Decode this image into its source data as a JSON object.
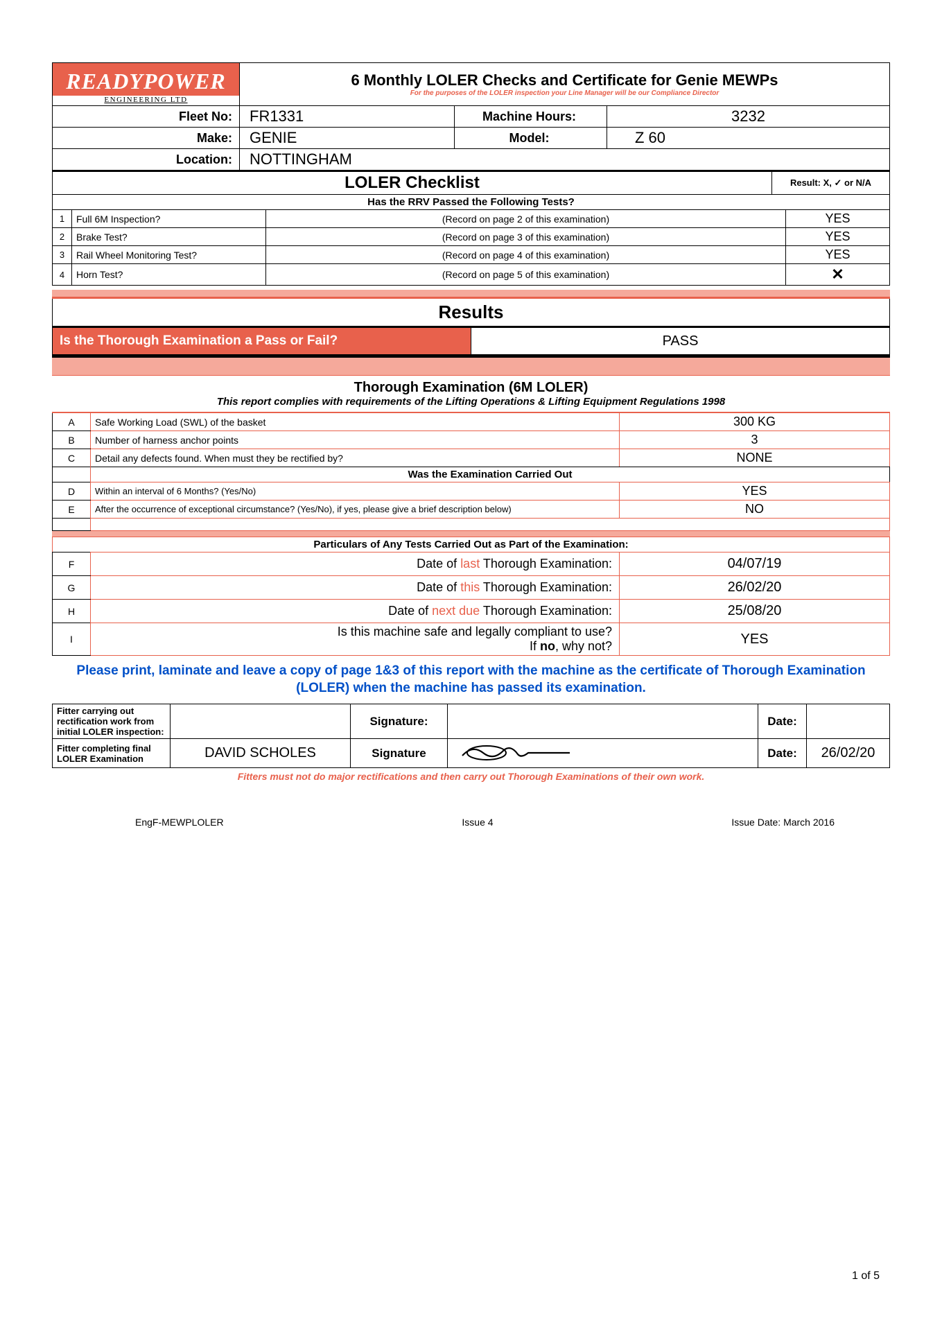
{
  "logo": {
    "main": "READYPOWER",
    "sub": "ENGINEERING LTD"
  },
  "header": {
    "title": "6 Monthly LOLER Checks and Certificate for Genie MEWPs",
    "subtitle": "For the purposes of the LOLER inspection your Line Manager will be our Compliance Director"
  },
  "info": {
    "fleet_label": "Fleet No:",
    "fleet": "FR1331",
    "hours_label": "Machine Hours:",
    "hours": "3232",
    "make_label": "Make:",
    "make": "GENIE",
    "model_label": "Model:",
    "model": "Z 60",
    "location_label": "Location:",
    "location": "NOTTINGHAM"
  },
  "checklist": {
    "title": "LOLER Checklist",
    "legend": "Result: X, ✓ or N/A",
    "subtitle": "Has the RRV Passed the Following Tests?",
    "rows": [
      {
        "n": "1",
        "q": "Full 6M Inspection?",
        "rec": "(Record on page 2 of this examination)",
        "r": "YES"
      },
      {
        "n": "2",
        "q": "Brake Test?",
        "rec": "(Record on page 3 of this examination)",
        "r": "YES"
      },
      {
        "n": "3",
        "q": "Rail Wheel Monitoring Test?",
        "rec": "(Record on page 4 of this examination)",
        "r": "YES"
      },
      {
        "n": "4",
        "q": "Horn Test?",
        "rec": "(Record on page 5 of this examination)",
        "r": "✕"
      }
    ]
  },
  "results": {
    "title": "Results",
    "question": "Is the Thorough Examination a Pass or Fail?",
    "value": "PASS"
  },
  "thorough": {
    "title": "Thorough Examination (6M LOLER)",
    "subtitle": "This report complies with requirements of the Lifting Operations & Lifting Equipment Regulations 1998",
    "rows1": [
      {
        "l": "A",
        "q": "Safe Working Load (SWL) of the basket",
        "v": "300 KG"
      },
      {
        "l": "B",
        "q": "Number of harness anchor points",
        "v": "3"
      },
      {
        "l": "C",
        "q": "Detail any defects found. When must they be rectified by?",
        "v": "NONE"
      }
    ],
    "sec1": "Was the Examination Carried Out",
    "rows2": [
      {
        "l": "D",
        "q": "Within an interval of 6 Months? (Yes/No)",
        "v": "YES"
      },
      {
        "l": "E",
        "q": "After the occurrence of exceptional circumstance? (Yes/No), if yes, please give a brief description below)",
        "v": "NO"
      }
    ],
    "sec2": "Particulars of Any Tests Carried Out as Part of the Examination:",
    "rows3": [
      {
        "l": "F",
        "pre": "Date of ",
        "hl": "last",
        "post": " Thorough Examination:",
        "v": "04/07/19"
      },
      {
        "l": "G",
        "pre": "Date of ",
        "hl": "this",
        "post": " Thorough Examination:",
        "v": "26/02/20"
      },
      {
        "l": "H",
        "pre": "Date of ",
        "hl": "next due",
        "post": " Thorough Examination:",
        "v": "25/08/20"
      }
    ],
    "row_i": {
      "l": "I",
      "q1": "Is this machine safe and legally compliant to use?",
      "q2": "If no, why not?",
      "v": "YES",
      "no_word": "no"
    }
  },
  "blue_note": "Please print, laminate and leave a copy of page 1&3 of this report with the machine as the certificate of Thorough Examination (LOLER) when the machine has passed its examination.",
  "signatures": {
    "row1_label": "Fitter carrying out rectification work from initial LOLER inspection:",
    "row2_label": "Fitter completing final LOLER Examination",
    "sig_word": "Signature:",
    "sig_word2": "Signature",
    "date_word": "Date:",
    "name2": "DAVID SCHOLES",
    "date2": "26/02/20"
  },
  "fitter_note": "Fitters must not do major rectifications and then carry out Thorough Examinations of their own work.",
  "footer": {
    "code": "EngF-MEWPLOLER",
    "issue": "Issue 4",
    "issue_date": "Issue Date: March 2016"
  },
  "page_num": "1 of 5"
}
